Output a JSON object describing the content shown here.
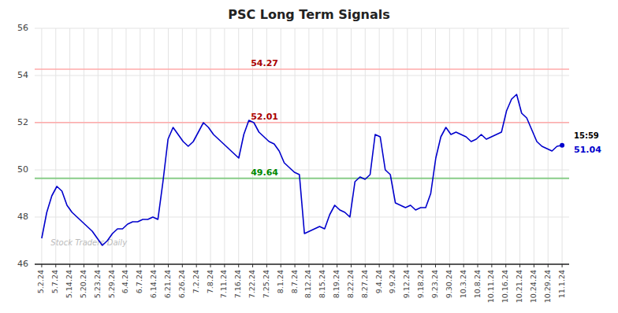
{
  "chart_data": {
    "type": "line",
    "title": "PSC Long Term Signals",
    "watermark": "Stock Traders Daily",
    "color": "#0000cc",
    "grid": true,
    "xlim": [
      -0.5,
      37.5
    ],
    "xticks": [
      {
        "value": 0,
        "label": "5.2.24"
      },
      {
        "value": 1,
        "label": "5.7.24"
      },
      {
        "value": 2,
        "label": "5.14.24"
      },
      {
        "value": 3,
        "label": "5.20.24"
      },
      {
        "value": 4,
        "label": "5.23.24"
      },
      {
        "value": 5,
        "label": "5.29.24"
      },
      {
        "value": 6,
        "label": "6.4.24"
      },
      {
        "value": 7,
        "label": "6.7.24"
      },
      {
        "value": 8,
        "label": "6.14.24"
      },
      {
        "value": 9,
        "label": "6.21.24"
      },
      {
        "value": 10,
        "label": "6.26.24"
      },
      {
        "value": 11,
        "label": "7.2.24"
      },
      {
        "value": 12,
        "label": "7.8.24"
      },
      {
        "value": 13,
        "label": "7.11.24"
      },
      {
        "value": 14,
        "label": "7.16.24"
      },
      {
        "value": 15,
        "label": "7.22.24"
      },
      {
        "value": 16,
        "label": "7.25.24"
      },
      {
        "value": 17,
        "label": "8.1.24"
      },
      {
        "value": 18,
        "label": "8.7.24"
      },
      {
        "value": 19,
        "label": "8.12.24"
      },
      {
        "value": 20,
        "label": "8.15.24"
      },
      {
        "value": 21,
        "label": "8.19.24"
      },
      {
        "value": 22,
        "label": "8.22.24"
      },
      {
        "value": 23,
        "label": "8.27.24"
      },
      {
        "value": 24,
        "label": "9.4.24"
      },
      {
        "value": 25,
        "label": "9.9.24"
      },
      {
        "value": 26,
        "label": "9.12.24"
      },
      {
        "value": 27,
        "label": "9.18.24"
      },
      {
        "value": 28,
        "label": "9.23.24"
      },
      {
        "value": 29,
        "label": "9.30.24"
      },
      {
        "value": 30,
        "label": "10.3.24"
      },
      {
        "value": 31,
        "label": "10.8.24"
      },
      {
        "value": 32,
        "label": "10.11.24"
      },
      {
        "value": 33,
        "label": "10.16.24"
      },
      {
        "value": 34,
        "label": "10.21.24"
      },
      {
        "value": 35,
        "label": "10.24.24"
      },
      {
        "value": 36,
        "label": "10.29.24"
      },
      {
        "value": 37,
        "label": "11.1.24"
      }
    ],
    "ylim": [
      46,
      56
    ],
    "yticks": [
      46,
      48,
      50,
      52,
      54,
      56
    ],
    "x": [
      0,
      0.3592,
      0.7184,
      1.0777,
      1.4369,
      1.7961,
      2.1553,
      2.5146,
      2.8738,
      3.233,
      3.5922,
      3.9515,
      4.3107,
      4.6699,
      5.0291,
      5.3883,
      5.7476,
      6.1068,
      6.466,
      6.8252,
      7.1845,
      7.5437,
      7.9029,
      8.2621,
      8.6214,
      8.9806,
      9.3398,
      9.699,
      10.0583,
      10.4175,
      10.7767,
      11.1359,
      11.4951,
      11.8544,
      12.2136,
      12.5728,
      12.932,
      13.2913,
      13.6505,
      14.0097,
      14.3689,
      14.7282,
      15.0874,
      15.4466,
      15.8058,
      16.165,
      16.5243,
      16.8835,
      17.2427,
      17.6019,
      17.9612,
      18.3204,
      18.6796,
      19.0388,
      19.3981,
      19.7573,
      20.1165,
      20.4757,
      20.835,
      21.1942,
      21.5534,
      21.9126,
      22.2718,
      22.6311,
      22.9903,
      23.3495,
      23.7087,
      24.068,
      24.4272,
      24.7864,
      25.1456,
      25.5049,
      25.8641,
      26.2233,
      26.5825,
      26.9417,
      27.301,
      27.6602,
      28.0194,
      28.3786,
      28.7379,
      29.0971,
      29.4563,
      29.8155,
      30.1748,
      30.534,
      30.8932,
      31.2524,
      31.6117,
      31.9709,
      32.3301,
      32.6893,
      33.0485,
      33.4078,
      33.767,
      34.1262,
      34.4854,
      34.8447,
      35.2039,
      35.5631,
      35.9223,
      36.2816,
      36.6408,
      37
    ],
    "values": [
      47.1,
      48.2,
      48.9,
      49.3,
      49.1,
      48.5,
      48.2,
      48.0,
      47.8,
      47.6,
      47.4,
      47.1,
      46.8,
      47.0,
      47.3,
      47.5,
      47.5,
      47.7,
      47.8,
      47.8,
      47.9,
      47.9,
      48.0,
      47.9,
      49.5,
      51.3,
      51.8,
      51.5,
      51.2,
      51.0,
      51.2,
      51.6,
      52.0,
      51.8,
      51.5,
      51.3,
      51.1,
      50.9,
      50.7,
      50.5,
      51.5,
      52.1,
      52.0,
      51.6,
      51.4,
      51.2,
      51.1,
      50.8,
      50.3,
      50.1,
      49.9,
      49.8,
      47.3,
      47.4,
      47.5,
      47.6,
      47.5,
      48.1,
      48.5,
      48.3,
      48.2,
      48.0,
      49.5,
      49.7,
      49.6,
      49.8,
      51.5,
      51.4,
      50.0,
      49.8,
      48.6,
      48.5,
      48.4,
      48.5,
      48.3,
      48.4,
      48.4,
      49.0,
      50.5,
      51.4,
      51.8,
      51.5,
      51.6,
      51.5,
      51.4,
      51.2,
      51.3,
      51.5,
      51.3,
      51.4,
      51.5,
      51.6,
      52.5,
      53.0,
      53.2,
      52.4,
      52.2,
      51.7,
      51.2,
      51.0,
      50.9,
      50.8,
      51.0,
      51.04
    ],
    "reference_lines": [
      {
        "value": 54.27,
        "label": "54.27",
        "color": "#ffaaaa",
        "label_color": "#aa0000"
      },
      {
        "value": 52.01,
        "label": "52.01",
        "color": "#ffaaaa",
        "label_color": "#aa0000"
      },
      {
        "value": 49.64,
        "label": "49.64",
        "color": "#88cc88",
        "label_color": "#008800"
      }
    ],
    "last_point": {
      "value": 51.04,
      "label": "51.04",
      "time": "15:59"
    }
  }
}
